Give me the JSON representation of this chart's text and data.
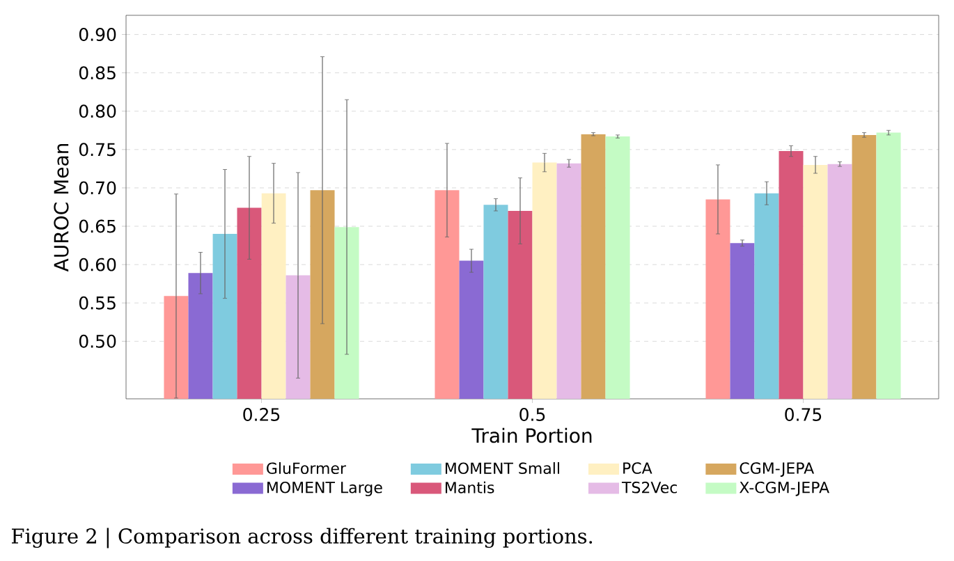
{
  "chart_data": {
    "type": "bar",
    "xlabel": "Train Portion",
    "ylabel": "AUROC Mean",
    "categories": [
      "0.25",
      "0.5",
      "0.75"
    ],
    "ylim": [
      0.425,
      0.925
    ],
    "yticks": [
      {
        "value": 0.5,
        "label": "0.50"
      },
      0.55,
      {
        "value": 0.6,
        "label": "0.60"
      },
      0.65,
      {
        "value": 0.7,
        "label": "0.70"
      },
      0.75,
      {
        "value": 0.8,
        "label": "0.80"
      },
      0.85,
      {
        "value": 0.9,
        "label": "0.90"
      }
    ],
    "grid": "y",
    "legend": "bottom",
    "series": [
      {
        "name": "GluFormer",
        "color": "#ff9896",
        "values": [
          0.559,
          0.697,
          0.685
        ],
        "errors": [
          0.133,
          0.061,
          0.045
        ]
      },
      {
        "name": "MOMENT Large",
        "color": "#8a6ad3",
        "values": [
          0.589,
          0.605,
          0.628
        ],
        "errors": [
          0.027,
          0.015,
          0.004
        ]
      },
      {
        "name": "MOMENT Small",
        "color": "#7fcbdf",
        "values": [
          0.64,
          0.678,
          0.693
        ],
        "errors": [
          0.084,
          0.008,
          0.015
        ]
      },
      {
        "name": "Mantis",
        "color": "#d9587a",
        "values": [
          0.674,
          0.67,
          0.748
        ],
        "errors": [
          0.067,
          0.043,
          0.007
        ]
      },
      {
        "name": "PCA",
        "color": "#fff0c2",
        "values": [
          0.693,
          0.733,
          0.73
        ],
        "errors": [
          0.039,
          0.012,
          0.011
        ]
      },
      {
        "name": "TS2Vec",
        "color": "#e5bbe6",
        "values": [
          0.586,
          0.732,
          0.731
        ],
        "errors": [
          0.134,
          0.005,
          0.003
        ]
      },
      {
        "name": "CGM-JEPA",
        "color": "#d6a75f",
        "values": [
          0.697,
          0.77,
          0.769
        ],
        "errors": [
          0.174,
          0.002,
          0.003
        ]
      },
      {
        "name": "X-CGM-JEPA",
        "color": "#c4fbc4",
        "values": [
          0.649,
          0.767,
          0.772
        ],
        "errors": [
          0.166,
          0.002,
          0.003
        ]
      }
    ],
    "annotations": [
      "Figure 2 | Comparison across different training portions."
    ]
  }
}
